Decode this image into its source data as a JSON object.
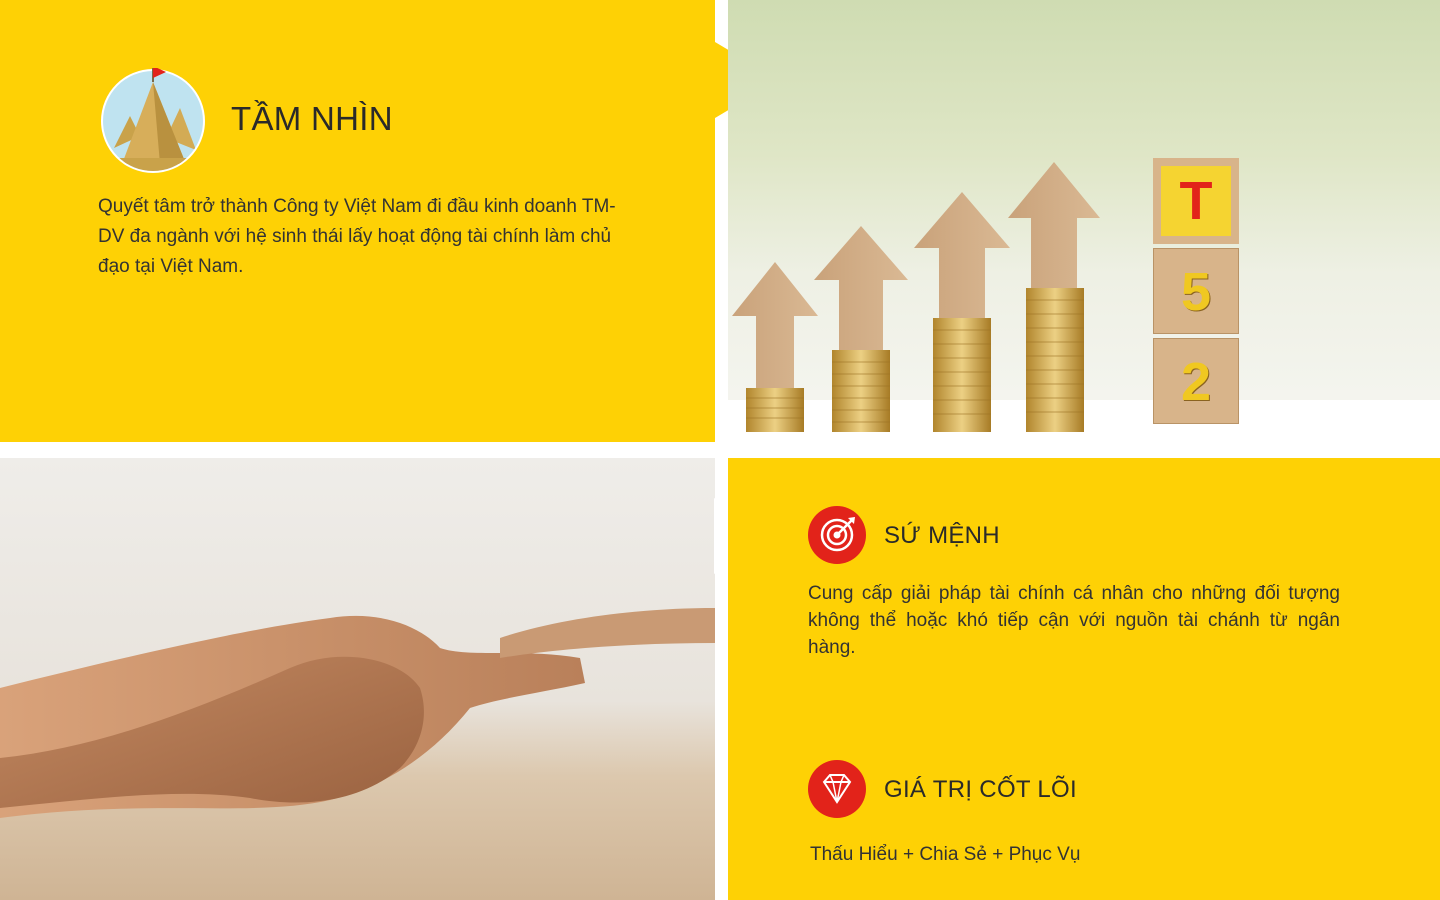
{
  "vision": {
    "title": "TẦM NHÌN",
    "text": "Quyết tâm trở thành Công ty Việt Nam đi đầu kinh doanh TM-DV đa ngành với hệ sinh thái lấy hoạt động tài chính làm chủ đạo tại Việt Nam.",
    "icon": "mountain-flag-icon"
  },
  "blocks": {
    "letter": "T",
    "digit1": "5",
    "digit2": "2"
  },
  "mission": {
    "title": "SỨ MỆNH",
    "text": "Cung cấp giải pháp tài chính cá nhân cho những đối tượng không thể hoặc khó tiếp cận với nguồn tài chánh từ ngân hàng.",
    "icon": "target-icon"
  },
  "core_values": {
    "title": "GIÁ TRỊ CỐT LÕI",
    "text": "Thấu Hiểu + Chia Sẻ + Phục Vụ",
    "icon": "diamond-icon"
  },
  "colors": {
    "brand_yellow": "#fed105",
    "accent_red": "#e2231a"
  }
}
